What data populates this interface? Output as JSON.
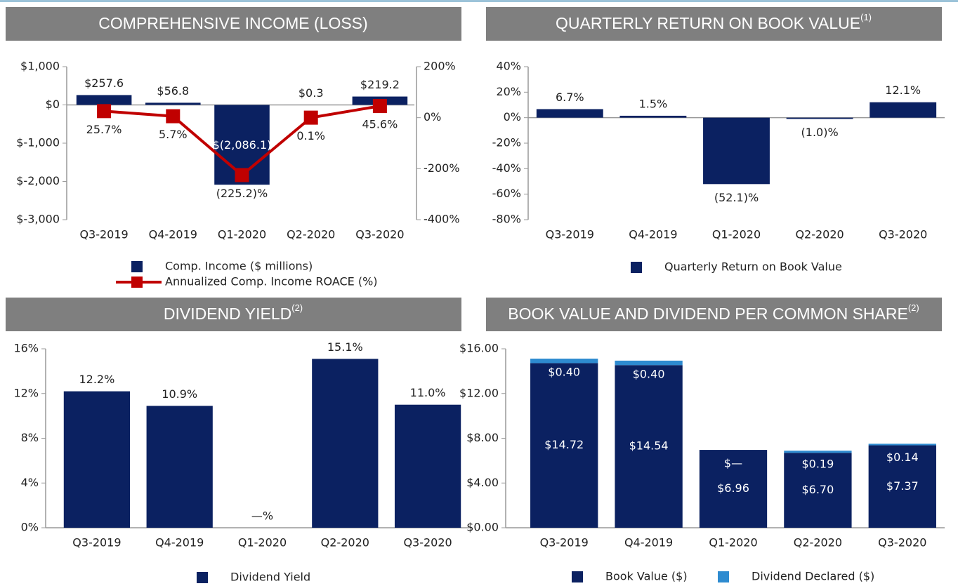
{
  "chart_data": [
    {
      "type": "bar",
      "title": "COMPREHENSIVE INCOME (LOSS)",
      "categories": [
        "Q3-2019",
        "Q4-2019",
        "Q1-2020",
        "Q2-2020",
        "Q3-2020"
      ],
      "series": [
        {
          "name": "Comp. Income ($ millions)",
          "type": "bar",
          "color": "#0b2161",
          "values": [
            257.6,
            56.8,
            -2086.1,
            0.3,
            219.2
          ],
          "value_labels": [
            "$257.6",
            "$56.8",
            "$(2,086.1)",
            "$0.3",
            "$219.2"
          ]
        },
        {
          "name": "Annualized Comp. Income ROACE (%)",
          "type": "line",
          "axis": "y2",
          "color": "#c00000",
          "values": [
            25.7,
            5.7,
            -225.2,
            0.1,
            45.6
          ],
          "value_labels": [
            "25.7%",
            "5.7%",
            "(225.2)%",
            "0.1%",
            "45.6%"
          ]
        }
      ],
      "ylim": [
        -3000,
        1000
      ],
      "yticks": [
        {
          "value": 1000,
          "label": "$1,000"
        },
        {
          "value": 0,
          "label": "$0"
        },
        {
          "value": -1000,
          "label": "$-1,000"
        },
        {
          "value": -2000,
          "label": "$-2,000"
        },
        {
          "value": -3000,
          "label": "$-3,000"
        }
      ],
      "y2lim": [
        -400,
        200
      ],
      "y2ticks": [
        {
          "value": 200,
          "label": "200%"
        },
        {
          "value": 0,
          "label": "0%"
        },
        {
          "value": -200,
          "label": "-200%"
        },
        {
          "value": -400,
          "label": "-400%"
        }
      ]
    },
    {
      "type": "bar",
      "title": "QUARTERLY RETURN ON BOOK VALUE",
      "title_note": "(1)",
      "categories": [
        "Q3-2019",
        "Q4-2019",
        "Q1-2020",
        "Q2-2020",
        "Q3-2020"
      ],
      "series": [
        {
          "name": "Quarterly Return on Book Value",
          "type": "bar",
          "color": "#0b2161",
          "values": [
            6.7,
            1.5,
            -52.1,
            -1.0,
            12.1
          ],
          "value_labels": [
            "6.7%",
            "1.5%",
            "(52.1)%",
            "(1.0)%",
            "12.1%"
          ]
        }
      ],
      "ylim": [
        -80,
        40
      ],
      "yticks": [
        {
          "value": 40,
          "label": "40%"
        },
        {
          "value": 20,
          "label": "20%"
        },
        {
          "value": 0,
          "label": "0%"
        },
        {
          "value": -20,
          "label": "-20%"
        },
        {
          "value": -40,
          "label": "-40%"
        },
        {
          "value": -60,
          "label": "-60%"
        },
        {
          "value": -80,
          "label": "-80%"
        }
      ]
    },
    {
      "type": "bar",
      "title": "DIVIDEND YIELD",
      "title_note": "(2)",
      "categories": [
        "Q3-2019",
        "Q4-2019",
        "Q1-2020",
        "Q2-2020",
        "Q3-2020"
      ],
      "series": [
        {
          "name": "Dividend Yield",
          "type": "bar",
          "color": "#0b2161",
          "values": [
            12.2,
            10.9,
            0,
            15.1,
            11.0
          ],
          "value_labels": [
            "12.2%",
            "10.9%",
            "—%",
            "15.1%",
            "11.0%"
          ]
        }
      ],
      "ylim": [
        0,
        16
      ],
      "yticks": [
        {
          "value": 16,
          "label": "16%"
        },
        {
          "value": 12,
          "label": "12%"
        },
        {
          "value": 8,
          "label": "8%"
        },
        {
          "value": 4,
          "label": "4%"
        },
        {
          "value": 0,
          "label": "0%"
        }
      ]
    },
    {
      "type": "stacked_bar",
      "title": "BOOK VALUE AND DIVIDEND PER COMMON SHARE",
      "title_note": "(2)",
      "categories": [
        "Q3-2019",
        "Q4-2019",
        "Q1-2020",
        "Q2-2020",
        "Q3-2020"
      ],
      "series": [
        {
          "name": "Book Value ($)",
          "color": "#0b2161",
          "values": [
            14.72,
            14.54,
            6.96,
            6.7,
            7.37
          ],
          "value_labels": [
            "$14.72",
            "$14.54",
            "$6.96",
            "$6.70",
            "$7.37"
          ]
        },
        {
          "name": "Dividend Declared ($)",
          "color": "#2e8bd0",
          "values": [
            0.4,
            0.4,
            0,
            0.19,
            0.14
          ],
          "value_labels": [
            "$0.40",
            "$0.40",
            "$—",
            "$0.19",
            "$0.14"
          ]
        }
      ],
      "ylim": [
        0,
        16
      ],
      "yticks": [
        {
          "value": 16,
          "label": "$16.00"
        },
        {
          "value": 12,
          "label": "$12.00"
        },
        {
          "value": 8,
          "label": "$8.00"
        },
        {
          "value": 4,
          "label": "$4.00"
        },
        {
          "value": 0,
          "label": "$0.00"
        }
      ]
    }
  ]
}
